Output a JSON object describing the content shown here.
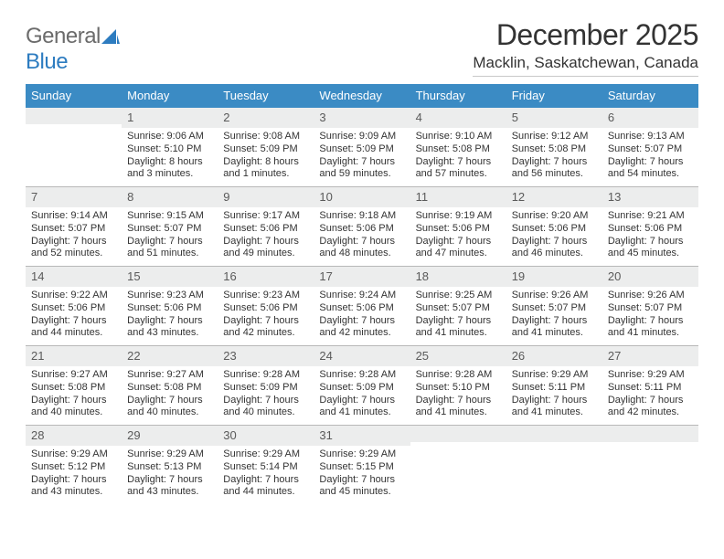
{
  "logo": {
    "text1": "General",
    "text2": "Blue"
  },
  "title": "December 2025",
  "location": "Macklin, Saskatchewan, Canada",
  "calendar": {
    "header_bg": "#3b8bc4",
    "daynum_bg": "#eceded",
    "week_border": "#b8b8b8",
    "text_color": "#333333",
    "background": "#ffffff",
    "day_headers": [
      "Sunday",
      "Monday",
      "Tuesday",
      "Wednesday",
      "Thursday",
      "Friday",
      "Saturday"
    ],
    "leading_blanks": 1,
    "days": [
      {
        "n": "1",
        "sunrise": "Sunrise: 9:06 AM",
        "sunset": "Sunset: 5:10 PM",
        "daylight1": "Daylight: 8 hours",
        "daylight2": "and 3 minutes."
      },
      {
        "n": "2",
        "sunrise": "Sunrise: 9:08 AM",
        "sunset": "Sunset: 5:09 PM",
        "daylight1": "Daylight: 8 hours",
        "daylight2": "and 1 minutes."
      },
      {
        "n": "3",
        "sunrise": "Sunrise: 9:09 AM",
        "sunset": "Sunset: 5:09 PM",
        "daylight1": "Daylight: 7 hours",
        "daylight2": "and 59 minutes."
      },
      {
        "n": "4",
        "sunrise": "Sunrise: 9:10 AM",
        "sunset": "Sunset: 5:08 PM",
        "daylight1": "Daylight: 7 hours",
        "daylight2": "and 57 minutes."
      },
      {
        "n": "5",
        "sunrise": "Sunrise: 9:12 AM",
        "sunset": "Sunset: 5:08 PM",
        "daylight1": "Daylight: 7 hours",
        "daylight2": "and 56 minutes."
      },
      {
        "n": "6",
        "sunrise": "Sunrise: 9:13 AM",
        "sunset": "Sunset: 5:07 PM",
        "daylight1": "Daylight: 7 hours",
        "daylight2": "and 54 minutes."
      },
      {
        "n": "7",
        "sunrise": "Sunrise: 9:14 AM",
        "sunset": "Sunset: 5:07 PM",
        "daylight1": "Daylight: 7 hours",
        "daylight2": "and 52 minutes."
      },
      {
        "n": "8",
        "sunrise": "Sunrise: 9:15 AM",
        "sunset": "Sunset: 5:07 PM",
        "daylight1": "Daylight: 7 hours",
        "daylight2": "and 51 minutes."
      },
      {
        "n": "9",
        "sunrise": "Sunrise: 9:17 AM",
        "sunset": "Sunset: 5:06 PM",
        "daylight1": "Daylight: 7 hours",
        "daylight2": "and 49 minutes."
      },
      {
        "n": "10",
        "sunrise": "Sunrise: 9:18 AM",
        "sunset": "Sunset: 5:06 PM",
        "daylight1": "Daylight: 7 hours",
        "daylight2": "and 48 minutes."
      },
      {
        "n": "11",
        "sunrise": "Sunrise: 9:19 AM",
        "sunset": "Sunset: 5:06 PM",
        "daylight1": "Daylight: 7 hours",
        "daylight2": "and 47 minutes."
      },
      {
        "n": "12",
        "sunrise": "Sunrise: 9:20 AM",
        "sunset": "Sunset: 5:06 PM",
        "daylight1": "Daylight: 7 hours",
        "daylight2": "and 46 minutes."
      },
      {
        "n": "13",
        "sunrise": "Sunrise: 9:21 AM",
        "sunset": "Sunset: 5:06 PM",
        "daylight1": "Daylight: 7 hours",
        "daylight2": "and 45 minutes."
      },
      {
        "n": "14",
        "sunrise": "Sunrise: 9:22 AM",
        "sunset": "Sunset: 5:06 PM",
        "daylight1": "Daylight: 7 hours",
        "daylight2": "and 44 minutes."
      },
      {
        "n": "15",
        "sunrise": "Sunrise: 9:23 AM",
        "sunset": "Sunset: 5:06 PM",
        "daylight1": "Daylight: 7 hours",
        "daylight2": "and 43 minutes."
      },
      {
        "n": "16",
        "sunrise": "Sunrise: 9:23 AM",
        "sunset": "Sunset: 5:06 PM",
        "daylight1": "Daylight: 7 hours",
        "daylight2": "and 42 minutes."
      },
      {
        "n": "17",
        "sunrise": "Sunrise: 9:24 AM",
        "sunset": "Sunset: 5:06 PM",
        "daylight1": "Daylight: 7 hours",
        "daylight2": "and 42 minutes."
      },
      {
        "n": "18",
        "sunrise": "Sunrise: 9:25 AM",
        "sunset": "Sunset: 5:07 PM",
        "daylight1": "Daylight: 7 hours",
        "daylight2": "and 41 minutes."
      },
      {
        "n": "19",
        "sunrise": "Sunrise: 9:26 AM",
        "sunset": "Sunset: 5:07 PM",
        "daylight1": "Daylight: 7 hours",
        "daylight2": "and 41 minutes."
      },
      {
        "n": "20",
        "sunrise": "Sunrise: 9:26 AM",
        "sunset": "Sunset: 5:07 PM",
        "daylight1": "Daylight: 7 hours",
        "daylight2": "and 41 minutes."
      },
      {
        "n": "21",
        "sunrise": "Sunrise: 9:27 AM",
        "sunset": "Sunset: 5:08 PM",
        "daylight1": "Daylight: 7 hours",
        "daylight2": "and 40 minutes."
      },
      {
        "n": "22",
        "sunrise": "Sunrise: 9:27 AM",
        "sunset": "Sunset: 5:08 PM",
        "daylight1": "Daylight: 7 hours",
        "daylight2": "and 40 minutes."
      },
      {
        "n": "23",
        "sunrise": "Sunrise: 9:28 AM",
        "sunset": "Sunset: 5:09 PM",
        "daylight1": "Daylight: 7 hours",
        "daylight2": "and 40 minutes."
      },
      {
        "n": "24",
        "sunrise": "Sunrise: 9:28 AM",
        "sunset": "Sunset: 5:09 PM",
        "daylight1": "Daylight: 7 hours",
        "daylight2": "and 41 minutes."
      },
      {
        "n": "25",
        "sunrise": "Sunrise: 9:28 AM",
        "sunset": "Sunset: 5:10 PM",
        "daylight1": "Daylight: 7 hours",
        "daylight2": "and 41 minutes."
      },
      {
        "n": "26",
        "sunrise": "Sunrise: 9:29 AM",
        "sunset": "Sunset: 5:11 PM",
        "daylight1": "Daylight: 7 hours",
        "daylight2": "and 41 minutes."
      },
      {
        "n": "27",
        "sunrise": "Sunrise: 9:29 AM",
        "sunset": "Sunset: 5:11 PM",
        "daylight1": "Daylight: 7 hours",
        "daylight2": "and 42 minutes."
      },
      {
        "n": "28",
        "sunrise": "Sunrise: 9:29 AM",
        "sunset": "Sunset: 5:12 PM",
        "daylight1": "Daylight: 7 hours",
        "daylight2": "and 43 minutes."
      },
      {
        "n": "29",
        "sunrise": "Sunrise: 9:29 AM",
        "sunset": "Sunset: 5:13 PM",
        "daylight1": "Daylight: 7 hours",
        "daylight2": "and 43 minutes."
      },
      {
        "n": "30",
        "sunrise": "Sunrise: 9:29 AM",
        "sunset": "Sunset: 5:14 PM",
        "daylight1": "Daylight: 7 hours",
        "daylight2": "and 44 minutes."
      },
      {
        "n": "31",
        "sunrise": "Sunrise: 9:29 AM",
        "sunset": "Sunset: 5:15 PM",
        "daylight1": "Daylight: 7 hours",
        "daylight2": "and 45 minutes."
      }
    ]
  }
}
